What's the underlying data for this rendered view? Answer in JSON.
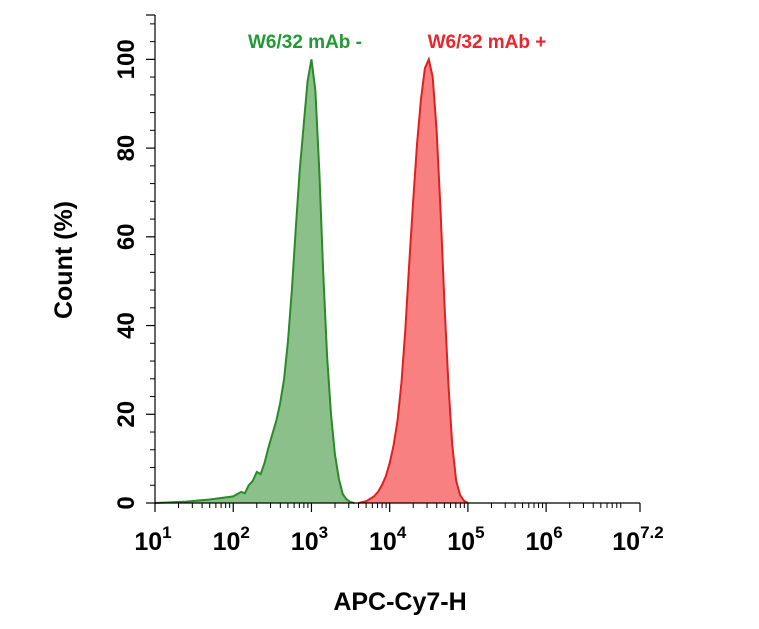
{
  "chart_data": {
    "type": "area",
    "xlabel": "APC-Cy7-H",
    "ylabel": "Count  (%)",
    "x_scale": "log10",
    "xlim": [
      10,
      15848931.92
    ],
    "ylim": [
      0,
      110
    ],
    "x_ticks": [
      {
        "base": "10",
        "exp": "1",
        "value": 10
      },
      {
        "base": "10",
        "exp": "2",
        "value": 100
      },
      {
        "base": "10",
        "exp": "3",
        "value": 1000
      },
      {
        "base": "10",
        "exp": "4",
        "value": 10000
      },
      {
        "base": "10",
        "exp": "5",
        "value": 100000
      },
      {
        "base": "10",
        "exp": "6",
        "value": 1000000
      },
      {
        "base": "10",
        "exp": "7.2",
        "value": 15848931.92
      }
    ],
    "y_ticks": [
      "0",
      "20",
      "40",
      "60",
      "80",
      "100"
    ],
    "y_tick_values": [
      0,
      20,
      40,
      60,
      80,
      100
    ],
    "series": [
      {
        "name": "W6/32 mAb -",
        "color": "#1f9a35",
        "stroke": "#2a8a2a",
        "fill": "#8cc08a",
        "x": [
          10,
          25,
          50,
          100,
          126,
          141,
          158,
          178,
          200,
          224,
          251,
          282,
          316,
          355,
          398,
          447,
          501,
          562,
          631,
          708,
          794,
          891,
          1000,
          1122,
          1259,
          1413,
          1585,
          1778,
          1995,
          2239,
          2512,
          2818,
          3162,
          3548
        ],
        "values": [
          0,
          0.3,
          0.8,
          1.5,
          2.5,
          2.2,
          4.0,
          5.0,
          7.0,
          6.5,
          9.0,
          12.5,
          15.5,
          18.5,
          22.5,
          28.0,
          36.5,
          48.0,
          62.0,
          75.0,
          85.0,
          95.0,
          100.0,
          93.0,
          75.0,
          52.0,
          33.0,
          20.0,
          11.0,
          5.5,
          2.0,
          0.8,
          0.2,
          0
        ]
      },
      {
        "name": "W6/32 mAb +",
        "color": "#e8262c",
        "stroke": "#e02020",
        "fill": "#f88080",
        "x": [
          4000,
          5012,
          6310,
          7079,
          7943,
          8913,
          10000,
          11220,
          12589,
          14125,
          15849,
          17783,
          19953,
          22387,
          25119,
          28184,
          31623,
          35481,
          39811,
          44668,
          50119,
          56234,
          63096,
          70795,
          79433,
          89125,
          100000
        ],
        "values": [
          0,
          0.4,
          1.5,
          2.5,
          4.0,
          6.0,
          9.0,
          13.0,
          18.5,
          27.0,
          39.0,
          54.0,
          68.0,
          81.0,
          91.0,
          98.0,
          100.0,
          96.0,
          84.0,
          66.0,
          45.0,
          27.0,
          13.0,
          5.0,
          1.8,
          0.5,
          0
        ]
      }
    ]
  }
}
